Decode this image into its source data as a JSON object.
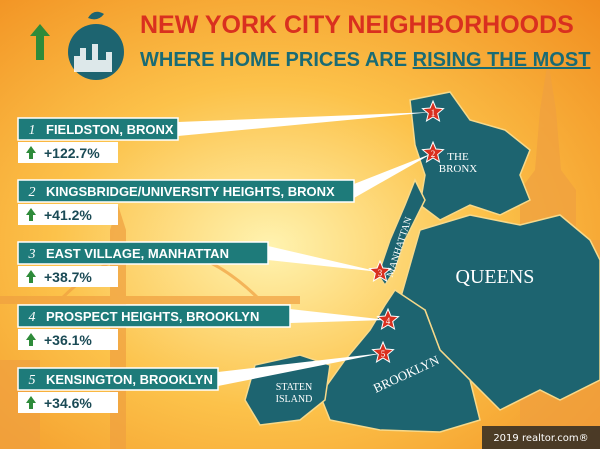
{
  "header": {
    "title": "NEW YORK CITY NEIGHBORHOODS",
    "subtitle_prefix": "WHERE HOME PRICES ARE ",
    "subtitle_emphasis": "RISING THE MOST"
  },
  "neighborhoods": [
    {
      "rank": "1",
      "name": "FIELDSTON, BRONX",
      "change": "+122.7%"
    },
    {
      "rank": "2",
      "name": "KINGSBRIDGE/UNIVERSITY HEIGHTS, BRONX",
      "change": "+41.2%"
    },
    {
      "rank": "3",
      "name": "EAST VILLAGE, MANHATTAN",
      "change": "+38.7%"
    },
    {
      "rank": "4",
      "name": "PROSPECT HEIGHTS, BROOKLYN",
      "change": "+36.1%"
    },
    {
      "rank": "5",
      "name": "KENSINGTON, BROOKLYN",
      "change": "+34.6%"
    }
  ],
  "map_labels": {
    "the_bronx": [
      "THE",
      "BRONX"
    ],
    "manhattan": "MANHATTAN",
    "queens": "QUEENS",
    "brooklyn": "BROOKLYN",
    "staten_island": [
      "STATEN",
      "ISLAND"
    ]
  },
  "credit": "2019 realtor.com®"
}
